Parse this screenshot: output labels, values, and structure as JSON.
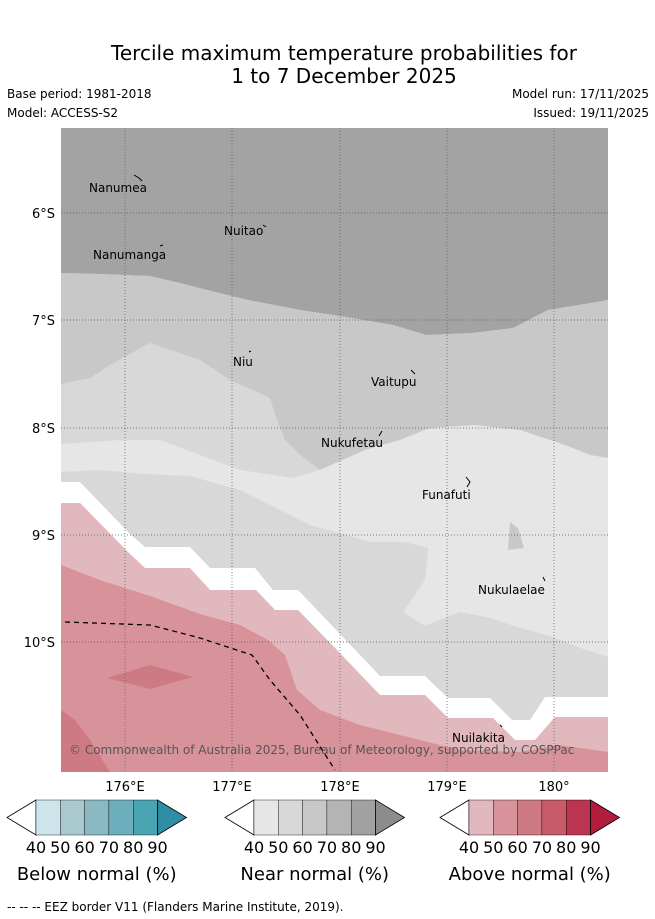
{
  "header": {
    "title_line1": "Tercile maximum temperature probabilities for",
    "title_line2": "1 to 7 December 2025",
    "base_period": "Base period: 1981-2018",
    "model": "Model: ACCESS-S2",
    "model_run": "Model run: 17/11/2025",
    "issued": "Issued: 19/11/2025"
  },
  "map": {
    "lat_labels": [
      "6°S",
      "7°S",
      "8°S",
      "9°S",
      "10°S"
    ],
    "lon_labels": [
      "176°E",
      "177°E",
      "178°E",
      "179°E",
      "180°"
    ],
    "places": [
      "Nanumea",
      "Nuitao",
      "Nanumanga",
      "Niu",
      "Vaitupu",
      "Nukufetau",
      "Funafuti",
      "Nukulaelae",
      "Nuilakita"
    ],
    "copyright": "© Commonwealth of Australia 2025, Bureau of Meteorology, supported by COSPPac"
  },
  "colorbars": [
    {
      "title": "Below normal (%)",
      "ticks": [
        "40",
        "50",
        "60",
        "70",
        "80",
        "90"
      ],
      "colors": [
        "#cce4ea",
        "#a9c9cd",
        "#8ab8c3",
        "#6caebb",
        "#4aa4b2",
        "#2e8ea5"
      ]
    },
    {
      "title": "Near normal (%)",
      "ticks": [
        "40",
        "50",
        "60",
        "70",
        "80",
        "90"
      ],
      "colors": [
        "#e6e6e6",
        "#d8d8d8",
        "#c8c8c8",
        "#b4b4b4",
        "#a1a1a1",
        "#8c8c8c"
      ]
    },
    {
      "title": "Above normal (%)",
      "ticks": [
        "40",
        "50",
        "60",
        "70",
        "80",
        "90"
      ],
      "colors": [
        "#e1b8be",
        "#d8939a",
        "#ce7a82",
        "#c75b68",
        "#bb3550",
        "#b31c3d"
      ]
    }
  ],
  "footer": "--  --  -- EEZ border V11 (Flanders Marine Institute, 2019)."
}
